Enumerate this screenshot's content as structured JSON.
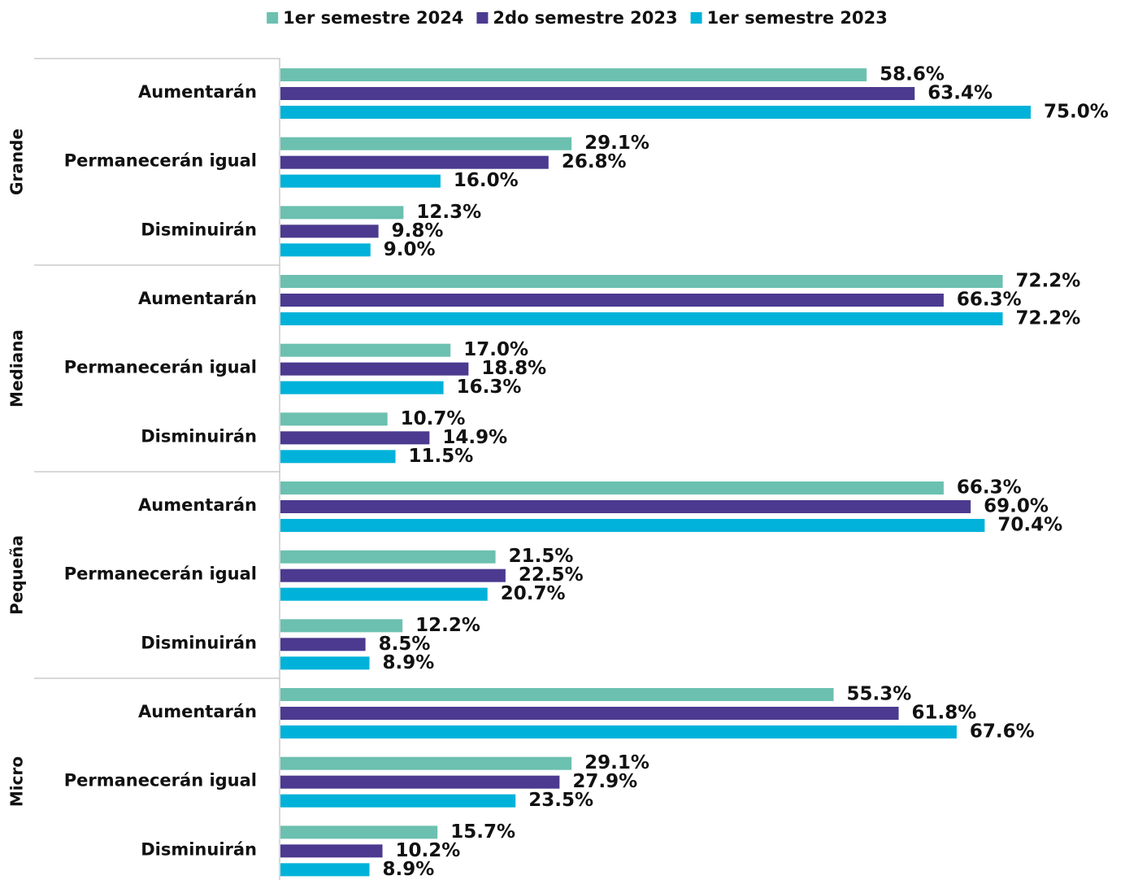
{
  "chart_data": {
    "type": "bar",
    "orientation": "horizontal",
    "groups": [
      "Grande",
      "Mediana",
      "Pequeña",
      "Micro"
    ],
    "categories": [
      "Aumentarán",
      "Permanecerán igual",
      "Disminuirán",
      "Aumentarán",
      "Permanecerán igual",
      "Disminuirán",
      "Aumentarán",
      "Permanecerán igual",
      "Disminuirán",
      "Aumentarán",
      "Permanecerán igual",
      "Disminuirán"
    ],
    "series": [
      {
        "name": "1er semestre 2024",
        "color": "#6cc0b0",
        "values": [
          58.6,
          29.1,
          12.3,
          72.2,
          17.0,
          10.7,
          66.3,
          21.5,
          12.2,
          55.3,
          29.1,
          15.7
        ],
        "value_labels": [
          "58.6%",
          "29.1%",
          "12.3%",
          "72.2%",
          "17.0%",
          "10.7%",
          "66.3%",
          "21.5%",
          "12.2%",
          "55.3%",
          "29.1%",
          "15.7%"
        ]
      },
      {
        "name": "2do semestre 2023",
        "color": "#4b3a8f",
        "values": [
          63.4,
          26.8,
          9.8,
          66.3,
          18.8,
          14.9,
          69.0,
          22.5,
          8.5,
          61.8,
          27.9,
          10.2
        ],
        "value_labels": [
          "63.4%",
          "26.8%",
          "9.8%",
          "66.3%",
          "18.8%",
          "14.9%",
          "69.0%",
          "22.5%",
          "8.5%",
          "61.8%",
          "27.9%",
          "10.2%"
        ]
      },
      {
        "name": "1er semestre 2023",
        "color": "#00b2d9",
        "values": [
          75.0,
          16.0,
          9.0,
          72.2,
          16.3,
          11.5,
          70.4,
          20.7,
          8.9,
          67.6,
          23.5,
          8.9
        ],
        "value_labels": [
          "75.0%",
          "16.0%",
          "9.0%",
          "72.2%",
          "16.3%",
          "11.5%",
          "70.4%",
          "20.7%",
          "8.9%",
          "67.6%",
          "23.5%",
          "8.9%"
        ]
      }
    ],
    "legend": "top"
  }
}
